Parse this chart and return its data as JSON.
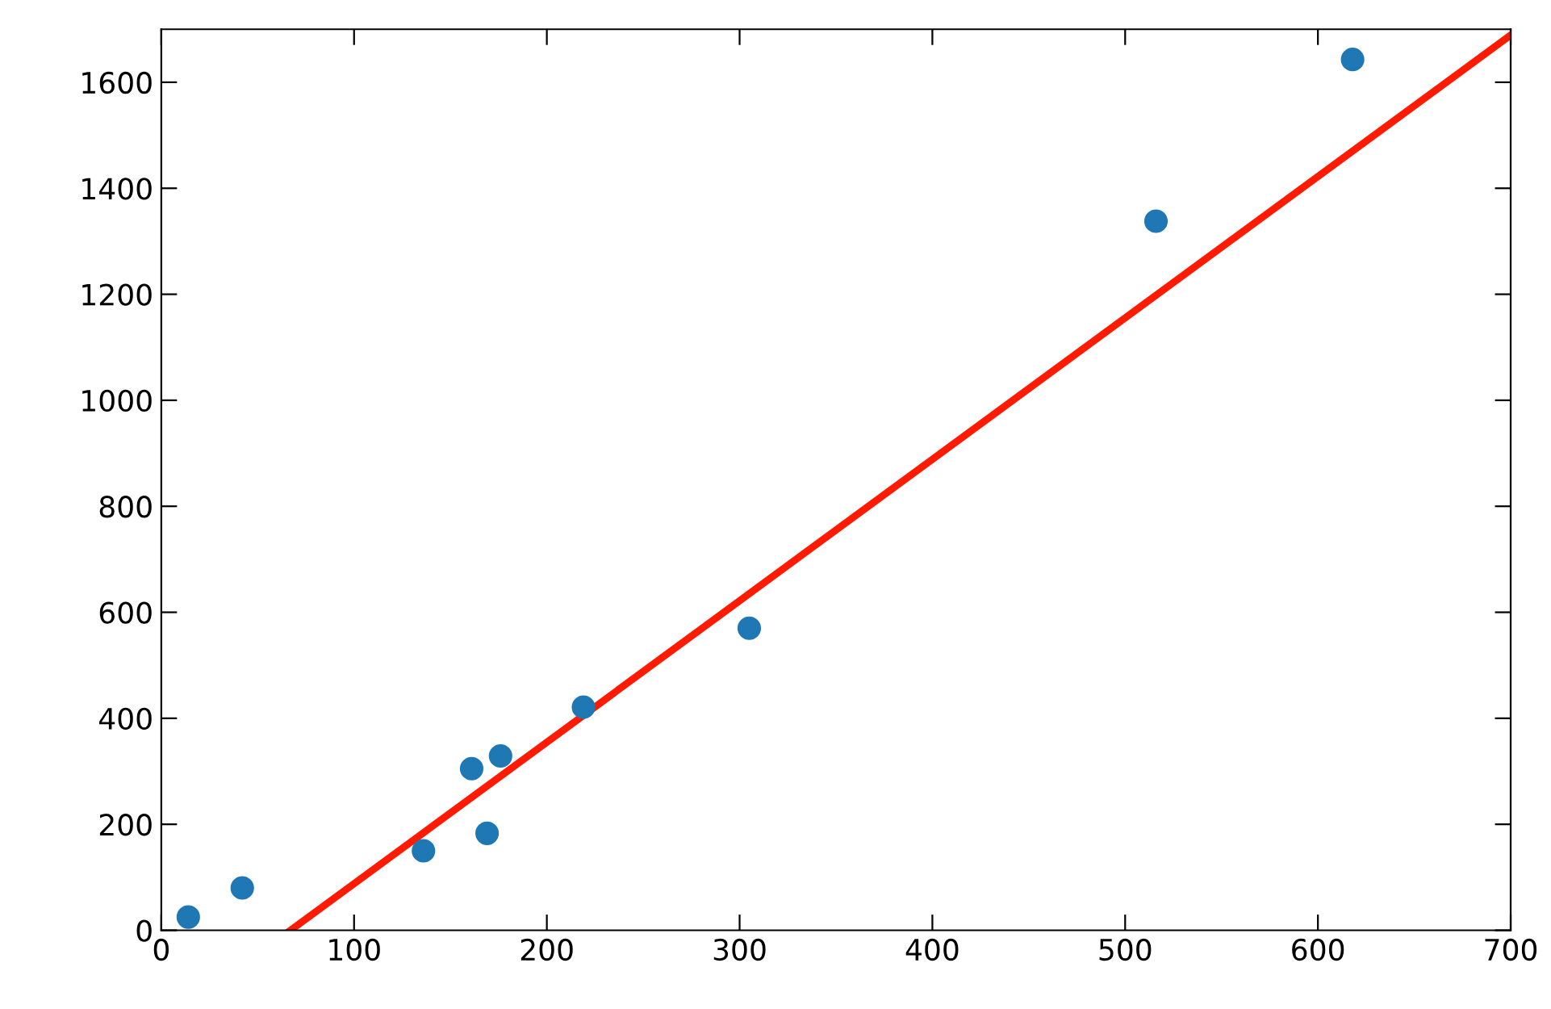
{
  "chart_data": {
    "type": "scatter",
    "xlim": [
      0,
      700
    ],
    "ylim": [
      0,
      1700
    ],
    "xticks": [
      0,
      100,
      200,
      300,
      400,
      500,
      600,
      700
    ],
    "yticks": [
      0,
      200,
      400,
      600,
      800,
      1000,
      1200,
      1400,
      1600
    ],
    "series": [
      {
        "type": "scatter",
        "color": "#1f77b4",
        "marker": "circle",
        "x": [
          14,
          42,
          136,
          161,
          169,
          176,
          219,
          305,
          516,
          618
        ],
        "values": [
          25,
          80,
          150,
          305,
          183,
          329,
          421,
          570,
          1338,
          1643
        ]
      },
      {
        "type": "line",
        "color": "#ff1a00",
        "x": [
          67,
          700
        ],
        "values": [
          0,
          1689
        ]
      }
    ]
  }
}
